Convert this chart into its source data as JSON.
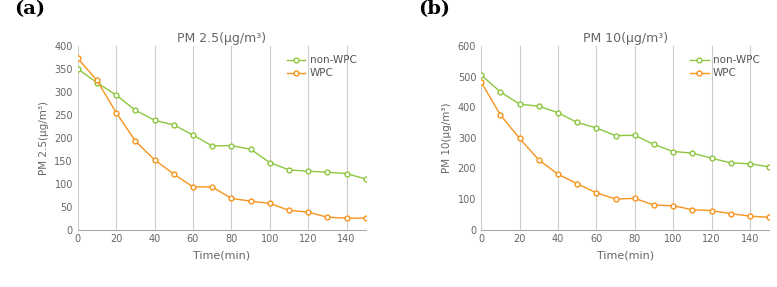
{
  "time": [
    0,
    10,
    20,
    30,
    40,
    50,
    60,
    70,
    80,
    90,
    100,
    110,
    120,
    130,
    140,
    150
  ],
  "pm25_nonWPC": [
    350,
    320,
    293,
    260,
    238,
    228,
    206,
    182,
    183,
    175,
    146,
    130,
    127,
    125,
    122,
    110
  ],
  "pm25_WPC": [
    373,
    325,
    255,
    193,
    152,
    121,
    93,
    93,
    68,
    62,
    57,
    42,
    38,
    27,
    25,
    25
  ],
  "pm10_nonWPC": [
    505,
    450,
    410,
    403,
    382,
    350,
    332,
    307,
    308,
    278,
    255,
    250,
    233,
    218,
    215,
    205
  ],
  "pm10_WPC": [
    482,
    375,
    298,
    228,
    181,
    150,
    120,
    100,
    102,
    80,
    78,
    65,
    62,
    52,
    44,
    40
  ],
  "color_nonWPC": "#8dc63f",
  "color_WPC": "#f7941d",
  "panel_a_title": "PM 2.5(μg/m³)",
  "panel_b_title": "PM 10(μg/m³)",
  "ylabel_a": "PM 2.5(μg/m³)",
  "ylabel_b": "PM 10(μg/m³)",
  "xlabel": "Time(min)",
  "legend_nonWPC": "non-WPC",
  "legend_WPC": "WPC",
  "xlim": [
    0,
    150
  ],
  "ylim_a": [
    0,
    400
  ],
  "ylim_b": [
    0,
    600
  ],
  "yticks_a": [
    0,
    50,
    100,
    150,
    200,
    250,
    300,
    350,
    400
  ],
  "yticks_b": [
    0,
    100,
    200,
    300,
    400,
    500,
    600
  ],
  "xticks": [
    0,
    20,
    40,
    60,
    80,
    100,
    120,
    140
  ],
  "grid_color": "#cccccc",
  "bg_color": "#ffffff",
  "label_a": "(a)",
  "label_b": "(b)"
}
